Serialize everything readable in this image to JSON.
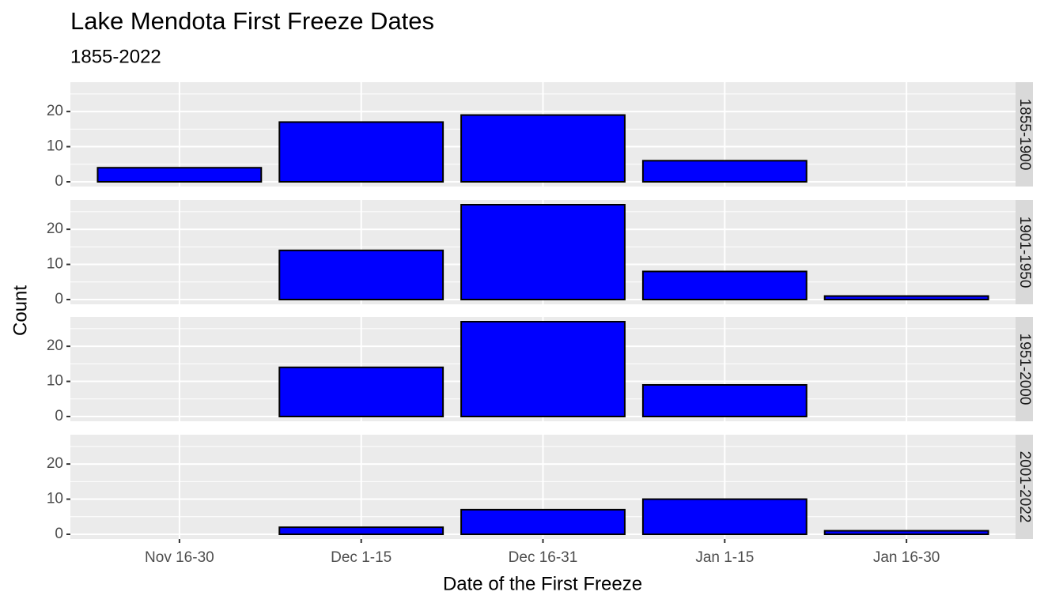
{
  "chart_data": {
    "type": "bar",
    "title": "Lake Mendota First Freeze Dates",
    "subtitle": "1855-2022",
    "x_label": "Date of the First Freeze",
    "y_label": "Count",
    "categories": [
      "Nov 16-30",
      "Dec 1-15",
      "Dec 16-31",
      "Jan 1-15",
      "Jan 16-30"
    ],
    "ylim": [
      -1.35,
      28.35
    ],
    "yticks": [
      0,
      10,
      20
    ],
    "grid": true,
    "color": "#0000ff",
    "edge_color": "#000000",
    "facets": [
      {
        "name": "1855-1900",
        "values": [
          4,
          17,
          19,
          6,
          null
        ]
      },
      {
        "name": "1901-1950",
        "values": [
          null,
          14,
          27,
          8,
          1
        ]
      },
      {
        "name": "1951-2000",
        "values": [
          null,
          14,
          27,
          9,
          null
        ]
      },
      {
        "name": "2001-2022",
        "values": [
          null,
          2,
          7,
          10,
          1
        ]
      }
    ]
  }
}
